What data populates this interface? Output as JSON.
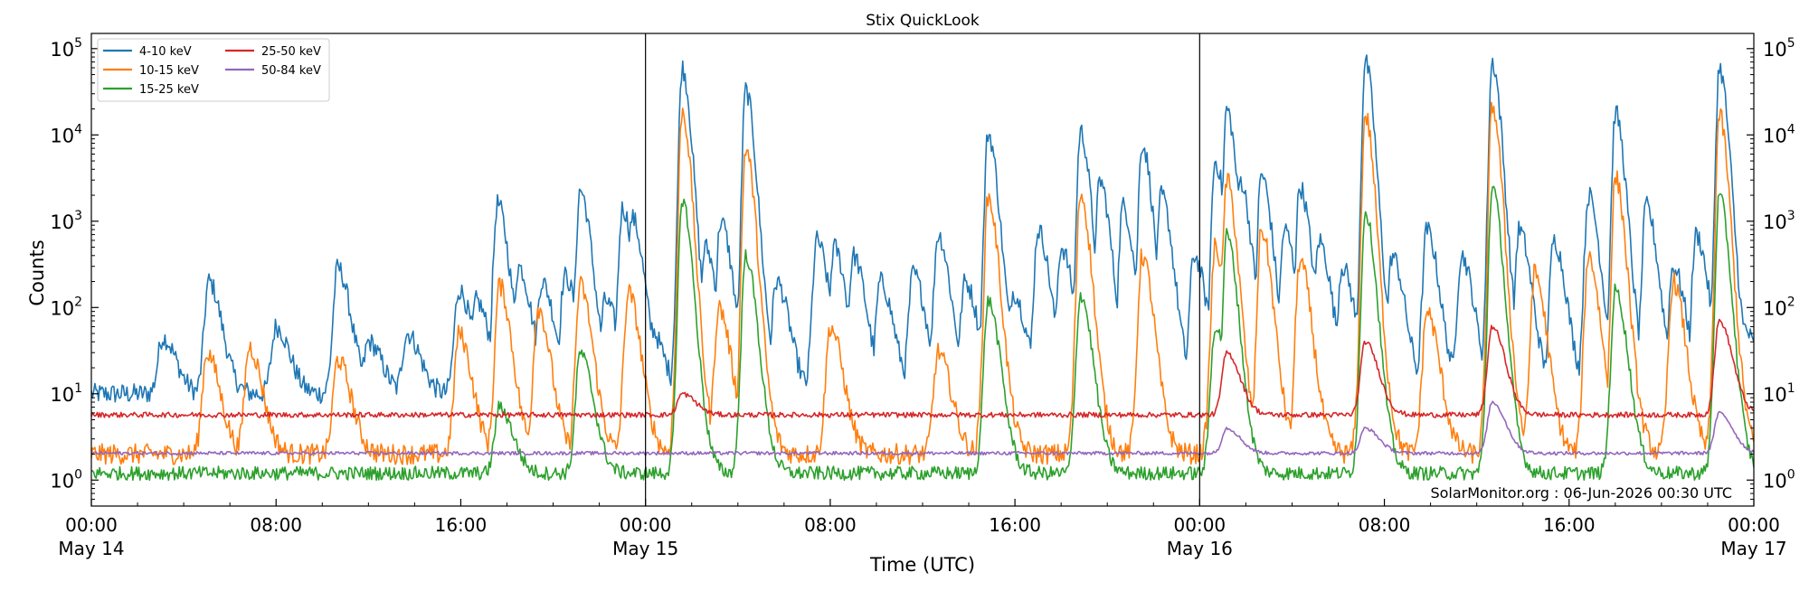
{
  "chart_data": {
    "type": "line",
    "title": "Stix QuickLook",
    "xlabel": "Time (UTC)",
    "ylabel": "Counts",
    "yscale": "log",
    "ylim": [
      0.5,
      150000
    ],
    "xlim": [
      "2026-05-14 00:00",
      "2026-05-17 00:00"
    ],
    "x_ticks": [
      {
        "time": "2026-05-14 00:00",
        "line1": "00:00",
        "line2": "May 14"
      },
      {
        "time": "2026-05-14 08:00",
        "line1": "08:00",
        "line2": ""
      },
      {
        "time": "2026-05-14 16:00",
        "line1": "16:00",
        "line2": ""
      },
      {
        "time": "2026-05-15 00:00",
        "line1": "00:00",
        "line2": "May 15"
      },
      {
        "time": "2026-05-15 08:00",
        "line1": "08:00",
        "line2": ""
      },
      {
        "time": "2026-05-15 16:00",
        "line1": "16:00",
        "line2": ""
      },
      {
        "time": "2026-05-16 00:00",
        "line1": "00:00",
        "line2": "May 16"
      },
      {
        "time": "2026-05-16 08:00",
        "line1": "08:00",
        "line2": ""
      },
      {
        "time": "2026-05-16 16:00",
        "line1": "16:00",
        "line2": ""
      },
      {
        "time": "2026-05-17 00:00",
        "line1": "00:00",
        "line2": "May 17"
      }
    ],
    "y_ticks": [
      {
        "value": 1,
        "base": "10",
        "exp": "0"
      },
      {
        "value": 10,
        "base": "10",
        "exp": "1"
      },
      {
        "value": 100,
        "base": "10",
        "exp": "2"
      },
      {
        "value": 1000,
        "base": "10",
        "exp": "3"
      },
      {
        "value": 10000,
        "base": "10",
        "exp": "4"
      },
      {
        "value": 100000,
        "base": "10",
        "exp": "5"
      }
    ],
    "day_lines": [
      "2026-05-15 00:00",
      "2026-05-16 00:00"
    ],
    "annotation": "SolarMonitor.org : 06-Jun-2026 00:30 UTC",
    "legend_position": "upper-left",
    "grid": false,
    "series": [
      {
        "name": "4-10 keV",
        "color": "#1f77b4",
        "baseline": 10,
        "peaks": [
          [
            "2026-05-14 03:05",
            45
          ],
          [
            "2026-05-14 05:05",
            200
          ],
          [
            "2026-05-14 08:00",
            60
          ],
          [
            "2026-05-14 10:40",
            290
          ],
          [
            "2026-05-14 12:00",
            40
          ],
          [
            "2026-05-14 13:40",
            50
          ],
          [
            "2026-05-14 15:55",
            160
          ],
          [
            "2026-05-14 16:40",
            120
          ],
          [
            "2026-05-14 17:35",
            1600
          ],
          [
            "2026-05-14 18:30",
            300
          ],
          [
            "2026-05-14 19:30",
            200
          ],
          [
            "2026-05-14 20:30",
            230
          ],
          [
            "2026-05-14 21:10",
            2300
          ],
          [
            "2026-05-14 22:15",
            120
          ],
          [
            "2026-05-14 23:00",
            1400
          ],
          [
            "2026-05-14 23:25",
            1100
          ],
          [
            "2026-05-15 00:10",
            60
          ],
          [
            "2026-05-15 01:35",
            60000
          ],
          [
            "2026-05-15 02:35",
            500
          ],
          [
            "2026-05-15 03:15",
            1000
          ],
          [
            "2026-05-15 04:20",
            33000
          ],
          [
            "2026-05-15 05:40",
            200
          ],
          [
            "2026-05-15 07:25",
            600
          ],
          [
            "2026-05-15 08:10",
            500
          ],
          [
            "2026-05-15 09:00",
            400
          ],
          [
            "2026-05-15 10:10",
            200
          ],
          [
            "2026-05-15 11:35",
            250
          ],
          [
            "2026-05-15 12:40",
            700
          ],
          [
            "2026-05-15 13:50",
            200
          ],
          [
            "2026-05-15 14:50",
            10500
          ],
          [
            "2026-05-15 15:55",
            150
          ],
          [
            "2026-05-15 17:00",
            800
          ],
          [
            "2026-05-15 18:00",
            500
          ],
          [
            "2026-05-15 18:50",
            11000
          ],
          [
            "2026-05-15 19:40",
            3000
          ],
          [
            "2026-05-15 20:40",
            1500
          ],
          [
            "2026-05-15 21:30",
            8000
          ],
          [
            "2026-05-15 22:20",
            2000
          ],
          [
            "2026-05-15 23:45",
            400
          ],
          [
            "2026-05-16 00:40",
            5000
          ],
          [
            "2026-05-16 01:10",
            20000
          ],
          [
            "2026-05-16 01:45",
            3000
          ],
          [
            "2026-05-16 02:40",
            3500
          ],
          [
            "2026-05-16 03:40",
            800
          ],
          [
            "2026-05-16 04:20",
            2500
          ],
          [
            "2026-05-16 05:10",
            600
          ],
          [
            "2026-05-16 06:10",
            300
          ],
          [
            "2026-05-16 07:10",
            70000
          ],
          [
            "2026-05-16 08:20",
            400
          ],
          [
            "2026-05-16 09:50",
            800
          ],
          [
            "2026-05-16 11:20",
            400
          ],
          [
            "2026-05-16 12:40",
            70000
          ],
          [
            "2026-05-16 13:50",
            800
          ],
          [
            "2026-05-16 15:20",
            600
          ],
          [
            "2026-05-16 16:50",
            2000
          ],
          [
            "2026-05-16 18:00",
            18000
          ],
          [
            "2026-05-16 19:20",
            1500
          ],
          [
            "2026-05-16 20:30",
            300
          ],
          [
            "2026-05-16 21:30",
            700
          ],
          [
            "2026-05-16 22:30",
            60000
          ],
          [
            "2026-05-16 23:30",
            60
          ]
        ]
      },
      {
        "name": "10-15 keV",
        "color": "#ff7f0e",
        "baseline": 2,
        "peaks": [
          [
            "2026-05-14 05:00",
            30
          ],
          [
            "2026-05-14 06:50",
            35
          ],
          [
            "2026-05-14 10:40",
            25
          ],
          [
            "2026-05-14 15:55",
            50
          ],
          [
            "2026-05-14 17:40",
            180
          ],
          [
            "2026-05-14 19:20",
            100
          ],
          [
            "2026-05-14 21:10",
            180
          ],
          [
            "2026-05-14 23:15",
            150
          ],
          [
            "2026-05-15 01:35",
            19000
          ],
          [
            "2026-05-15 03:10",
            100
          ],
          [
            "2026-05-15 04:20",
            7000
          ],
          [
            "2026-05-15 08:00",
            60
          ],
          [
            "2026-05-15 12:40",
            30
          ],
          [
            "2026-05-15 14:50",
            1900
          ],
          [
            "2026-05-15 18:50",
            2100
          ],
          [
            "2026-05-15 21:30",
            400
          ],
          [
            "2026-05-16 00:40",
            500
          ],
          [
            "2026-05-16 01:10",
            3000
          ],
          [
            "2026-05-16 02:40",
            800
          ],
          [
            "2026-05-16 04:20",
            350
          ],
          [
            "2026-05-16 07:10",
            17000
          ],
          [
            "2026-05-16 09:50",
            90
          ],
          [
            "2026-05-16 12:40",
            22000
          ],
          [
            "2026-05-16 14:30",
            250
          ],
          [
            "2026-05-16 16:50",
            400
          ],
          [
            "2026-05-16 18:00",
            3200
          ],
          [
            "2026-05-16 20:30",
            200
          ],
          [
            "2026-05-16 22:30",
            17000
          ]
        ]
      },
      {
        "name": "15-25 keV",
        "color": "#2ca02c",
        "baseline": 1.2,
        "peaks": [
          [
            "2026-05-14 17:40",
            7
          ],
          [
            "2026-05-14 21:10",
            30
          ],
          [
            "2026-05-15 01:35",
            1800
          ],
          [
            "2026-05-15 04:20",
            400
          ],
          [
            "2026-05-15 14:50",
            120
          ],
          [
            "2026-05-15 18:50",
            140
          ],
          [
            "2026-05-16 00:40",
            60
          ],
          [
            "2026-05-16 01:10",
            700
          ],
          [
            "2026-05-16 07:10",
            1300
          ],
          [
            "2026-05-16 12:40",
            2500
          ],
          [
            "2026-05-16 18:00",
            160
          ],
          [
            "2026-05-16 22:30",
            2000
          ]
        ]
      },
      {
        "name": "25-50 keV",
        "color": "#d62728",
        "baseline": 5.7,
        "peaks": [
          [
            "2026-05-15 01:35",
            10
          ],
          [
            "2026-05-16 01:10",
            30
          ],
          [
            "2026-05-16 07:10",
            40
          ],
          [
            "2026-05-16 12:40",
            60
          ],
          [
            "2026-05-16 22:30",
            70
          ]
        ]
      },
      {
        "name": "50-84 keV",
        "color": "#9467bd",
        "baseline": 2.05,
        "peaks": [
          [
            "2026-05-16 01:10",
            4
          ],
          [
            "2026-05-16 07:10",
            4
          ],
          [
            "2026-05-16 12:40",
            8
          ],
          [
            "2026-05-16 22:30",
            6
          ]
        ]
      }
    ]
  }
}
